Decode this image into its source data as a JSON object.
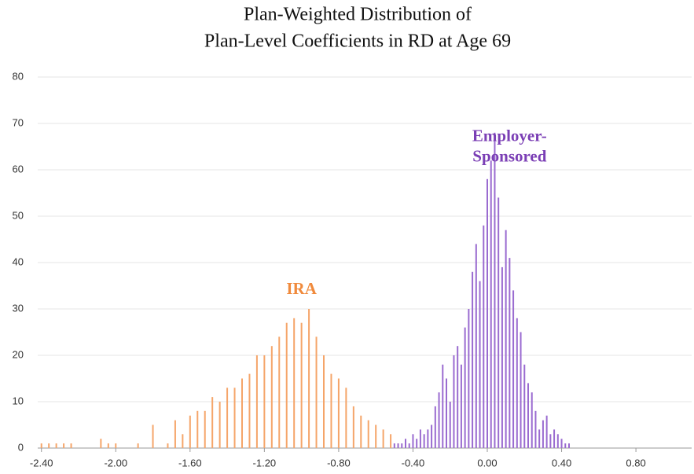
{
  "chart_data": {
    "type": "histogram",
    "title": [
      "Plan-Weighted Distribution of",
      "Plan-Level Coefficients  in RD at Age 69"
    ],
    "annotations": [
      {
        "text": [
          "IRA"
        ],
        "color": "#f08a3c",
        "x": -1.0,
        "y": 34
      },
      {
        "text": [
          "Employer-",
          "Sponsored"
        ],
        "color": "#7b3fb5",
        "x": 0.12,
        "y": 67
      }
    ],
    "series": [
      {
        "name": "IRA",
        "color": "#f5a56a",
        "x": [
          -2.4,
          -2.36,
          -2.32,
          -2.28,
          -2.24,
          -2.2,
          -2.16,
          -2.12,
          -2.08,
          -2.04,
          -2.0,
          -1.96,
          -1.92,
          -1.88,
          -1.84,
          -1.8,
          -1.76,
          -1.72,
          -1.68,
          -1.64,
          -1.6,
          -1.56,
          -1.52,
          -1.48,
          -1.44,
          -1.4,
          -1.36,
          -1.32,
          -1.28,
          -1.24,
          -1.2,
          -1.16,
          -1.12,
          -1.08,
          -1.04,
          -1.0,
          -0.96,
          -0.92,
          -0.88,
          -0.84,
          -0.8,
          -0.76,
          -0.72,
          -0.68,
          -0.64,
          -0.6,
          -0.56,
          -0.52,
          -0.48,
          -0.44,
          -0.4
        ],
        "values": [
          1,
          1,
          1,
          1,
          1,
          0,
          0,
          0,
          2,
          1,
          1,
          0,
          0,
          1,
          0,
          5,
          0,
          1,
          6,
          3,
          7,
          8,
          8,
          11,
          10,
          13,
          13,
          15,
          16,
          20,
          20,
          22,
          24,
          27,
          28,
          27,
          30,
          24,
          20,
          16,
          15,
          13,
          9,
          7,
          6,
          5,
          4,
          3,
          1,
          1,
          0
        ]
      },
      {
        "name": "Employer-Sponsored",
        "color": "#9a6bd0",
        "x": [
          -0.5,
          -0.48,
          -0.46,
          -0.44,
          -0.42,
          -0.4,
          -0.38,
          -0.36,
          -0.34,
          -0.32,
          -0.3,
          -0.28,
          -0.26,
          -0.24,
          -0.22,
          -0.2,
          -0.18,
          -0.16,
          -0.14,
          -0.12,
          -0.1,
          -0.08,
          -0.06,
          -0.04,
          -0.02,
          0.0,
          0.02,
          0.04,
          0.06,
          0.08,
          0.1,
          0.12,
          0.14,
          0.16,
          0.18,
          0.2,
          0.22,
          0.24,
          0.26,
          0.28,
          0.3,
          0.32,
          0.34,
          0.36,
          0.38,
          0.4,
          0.42,
          0.44,
          0.46
        ],
        "values": [
          1,
          1,
          1,
          2,
          1,
          3,
          2,
          4,
          3,
          4,
          5,
          9,
          12,
          18,
          15,
          10,
          20,
          22,
          18,
          26,
          30,
          38,
          44,
          36,
          48,
          58,
          62,
          68,
          54,
          39,
          47,
          41,
          34,
          28,
          25,
          18,
          14,
          12,
          8,
          4,
          6,
          7,
          3,
          4,
          3,
          2,
          1,
          1,
          0
        ]
      }
    ],
    "xlim": [
      -2.42,
      1.1
    ],
    "xticks": [
      {
        "value": -2.4,
        "label": "-2.40"
      },
      {
        "value": -2.0,
        "label": "-2.00"
      },
      {
        "value": -1.6,
        "label": "-1.60"
      },
      {
        "value": -1.2,
        "label": "-1.20"
      },
      {
        "value": -0.8,
        "label": "-0.80"
      },
      {
        "value": -0.4,
        "label": "-0.40"
      },
      {
        "value": 0,
        "label": "0.00"
      },
      {
        "value": 0.4,
        "label": "0.40"
      },
      {
        "value": 0.8,
        "label": "0.80"
      }
    ],
    "ylim": [
      0,
      80
    ],
    "yticks": [
      0,
      10,
      20,
      30,
      40,
      50,
      60,
      70,
      80
    ],
    "grid": true
  }
}
